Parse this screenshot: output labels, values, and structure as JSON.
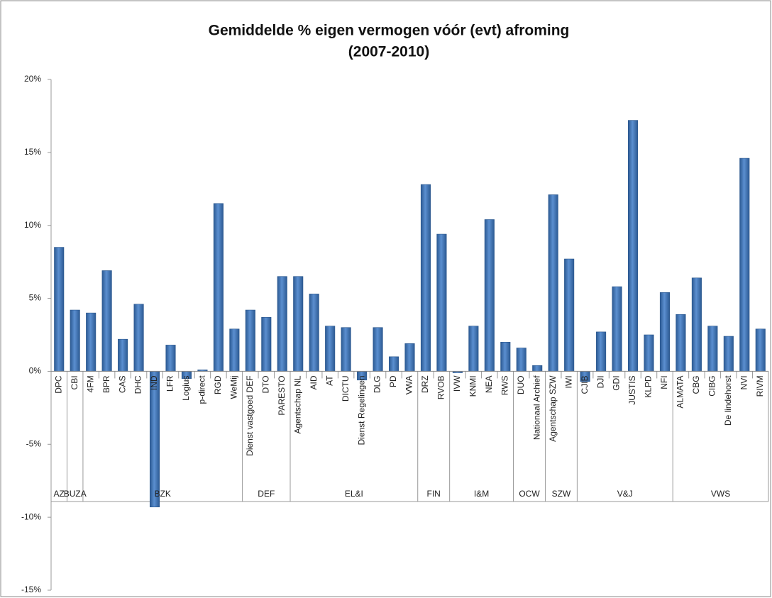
{
  "chart_data": {
    "type": "bar",
    "title": [
      "Gemiddelde % eigen vermogen  vóór (evt) afroming",
      "(2007-2010)"
    ],
    "groups": [
      {
        "name": "AZ",
        "categories": [
          "DPC"
        ]
      },
      {
        "name": "BUZA",
        "categories": [
          "CBI"
        ]
      },
      {
        "name": "BZK",
        "categories": [
          "4FM",
          "BPR",
          "CAS",
          "DHC",
          "IND",
          "LFR",
          "Logius",
          "p-direct",
          "RGD",
          "WeMij"
        ]
      },
      {
        "name": "DEF",
        "categories": [
          "Dienst vastgoed DEF",
          "DTO",
          "PARESTO"
        ]
      },
      {
        "name": "EL&I",
        "categories": [
          "Agentschap NL",
          "AID",
          "AT",
          "DICTU",
          "Dienst Regelingen",
          "DLG",
          "PD",
          "VWA"
        ]
      },
      {
        "name": "FIN",
        "categories": [
          "DRZ",
          "RVOB"
        ]
      },
      {
        "name": "I&M",
        "categories": [
          "IVW",
          "KNMI",
          "NEA",
          "RWS"
        ]
      },
      {
        "name": "OCW",
        "categories": [
          "DUO",
          "Nationaal Archief"
        ]
      },
      {
        "name": "SZW",
        "categories": [
          "Agentschap SZW",
          "IWI"
        ]
      },
      {
        "name": "V&J",
        "categories": [
          "CJIB",
          "DJI",
          "GDI",
          "JUSTIS",
          "KLPD",
          "NFI"
        ]
      },
      {
        "name": "VWS",
        "categories": [
          "ALMATA",
          "CBG",
          "CIBG",
          "De lindehorst",
          "NVI",
          "RIVM"
        ]
      }
    ],
    "values": [
      8.5,
      4.2,
      4.0,
      6.9,
      2.2,
      4.6,
      -9.3,
      1.8,
      -0.5,
      0.1,
      11.5,
      2.9,
      4.2,
      3.7,
      6.5,
      6.5,
      5.3,
      3.1,
      3.0,
      -0.6,
      3.0,
      1.0,
      1.9,
      12.8,
      9.4,
      -0.1,
      3.1,
      10.4,
      2.0,
      1.6,
      0.4,
      12.1,
      7.7,
      -0.7,
      2.7,
      5.8,
      17.2,
      2.5,
      5.4,
      3.9,
      6.4,
      3.1,
      2.4,
      14.6,
      2.9
    ],
    "color": "#4a7ebb",
    "ylim": [
      -15,
      20
    ],
    "yticks": [
      {
        "value": -15,
        "label": "-15%"
      },
      {
        "value": -10,
        "label": "-10%"
      },
      {
        "value": -5,
        "label": "-5%"
      },
      {
        "value": 0,
        "label": "0%"
      },
      {
        "value": 5,
        "label": "5%"
      },
      {
        "value": 10,
        "label": "10%"
      },
      {
        "value": 15,
        "label": "15%"
      },
      {
        "value": 20,
        "label": "20%"
      }
    ]
  }
}
